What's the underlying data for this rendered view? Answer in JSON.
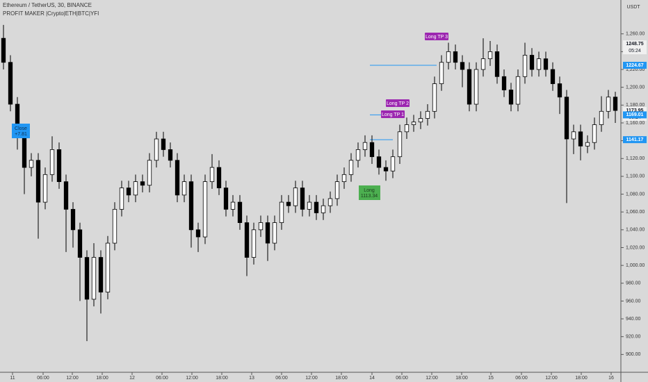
{
  "chart_data": {
    "type": "candlestick",
    "title": "Ethereum / TetherUS, 30, BINANCE",
    "subtitle": "PROFIT MAKER |Crypto|ETH|BTC|YFI",
    "y_unit": "USDT",
    "ylim": [
      880,
      1298
    ],
    "xlim": [
      -0.5,
      88.5
    ],
    "bull_color": "#ffffff",
    "bear_color": "#000000",
    "yticks": [
      {
        "value": 900,
        "label": "900.00"
      },
      {
        "value": 920,
        "label": "920.00"
      },
      {
        "value": 940,
        "label": "940.00"
      },
      {
        "value": 960,
        "label": "960.00"
      },
      {
        "value": 980,
        "label": "980.00"
      },
      {
        "value": 1000,
        "label": "1,000.00"
      },
      {
        "value": 1020,
        "label": "1,020.00"
      },
      {
        "value": 1040,
        "label": "1,040.00"
      },
      {
        "value": 1060,
        "label": "1,060.00"
      },
      {
        "value": 1080,
        "label": "1,080.00"
      },
      {
        "value": 1100,
        "label": "1,100.00"
      },
      {
        "value": 1120,
        "label": "1,120.00"
      },
      {
        "value": 1140,
        "label": "1,140.00"
      },
      {
        "value": 1160,
        "label": "1,160.00"
      },
      {
        "value": 1180,
        "label": "1,180.00"
      },
      {
        "value": 1200,
        "label": "1,200.00"
      },
      {
        "value": 1220,
        "label": "1,220.00"
      },
      {
        "value": 1240,
        "label": "1,240.00"
      },
      {
        "value": 1260,
        "label": "1,260.00"
      }
    ],
    "xticks": [
      {
        "value": 1.3,
        "label": "11"
      },
      {
        "value": 5.7,
        "label": "06:00"
      },
      {
        "value": 9.9,
        "label": "12:00"
      },
      {
        "value": 14.2,
        "label": "18:00"
      },
      {
        "value": 18.5,
        "label": "12"
      },
      {
        "value": 22.8,
        "label": "06:00"
      },
      {
        "value": 27.1,
        "label": "12:00"
      },
      {
        "value": 31.4,
        "label": "18:00"
      },
      {
        "value": 35.7,
        "label": "13"
      },
      {
        "value": 40,
        "label": "06:00"
      },
      {
        "value": 44.3,
        "label": "12:00"
      },
      {
        "value": 48.6,
        "label": "18:00"
      },
      {
        "value": 53,
        "label": "14"
      },
      {
        "value": 57.3,
        "label": "06:00"
      },
      {
        "value": 61.6,
        "label": "12:00"
      },
      {
        "value": 65.9,
        "label": "18:00"
      },
      {
        "value": 70.1,
        "label": "15"
      },
      {
        "value": 74.5,
        "label": "06:00"
      },
      {
        "value": 78.8,
        "label": "12:00"
      },
      {
        "value": 83.1,
        "label": "18:00"
      },
      {
        "value": 87.4,
        "label": "16"
      }
    ],
    "series": {
      "open": [
        1255,
        1228,
        1181,
        1150,
        1110,
        1118,
        1071,
        1102,
        1130,
        1094,
        1063,
        1040,
        1009,
        962,
        1009,
        970,
        1025,
        1063,
        1087,
        1079,
        1094,
        1090,
        1118,
        1142,
        1130,
        1118,
        1079,
        1094,
        1040,
        1032,
        1094,
        1110,
        1087,
        1063,
        1071,
        1048,
        1009,
        1040,
        1048,
        1025,
        1048,
        1071,
        1067,
        1087,
        1063,
        1071,
        1059,
        1067,
        1075,
        1094,
        1102,
        1118,
        1130,
        1138,
        1122,
        1110,
        1106,
        1122,
        1150,
        1158,
        1161,
        1165,
        1173,
        1204,
        1228,
        1240,
        1228,
        1220,
        1181,
        1220,
        1232,
        1240,
        1212,
        1197,
        1181,
        1212,
        1236,
        1220,
        1232,
        1220,
        1204,
        1189,
        1142,
        1150,
        1134,
        1138,
        1158,
        1173,
        1189
      ],
      "high": [
        1270,
        1236,
        1189,
        1158,
        1126,
        1126,
        1110,
        1145,
        1138,
        1102,
        1071,
        1048,
        1017,
        1025,
        1017,
        1033,
        1071,
        1095,
        1095,
        1102,
        1102,
        1126,
        1150,
        1150,
        1138,
        1126,
        1102,
        1102,
        1048,
        1102,
        1125,
        1118,
        1095,
        1079,
        1079,
        1056,
        1048,
        1056,
        1056,
        1056,
        1079,
        1079,
        1095,
        1095,
        1079,
        1079,
        1075,
        1083,
        1102,
        1110,
        1126,
        1138,
        1146,
        1146,
        1130,
        1118,
        1130,
        1158,
        1166,
        1169,
        1173,
        1181,
        1212,
        1236,
        1250,
        1248,
        1236,
        1228,
        1228,
        1255,
        1252,
        1248,
        1220,
        1205,
        1220,
        1250,
        1244,
        1240,
        1240,
        1228,
        1212,
        1197,
        1158,
        1158,
        1146,
        1166,
        1190,
        1197,
        1195
      ],
      "low": [
        1220,
        1173,
        1130,
        1080,
        1100,
        1030,
        1063,
        1094,
        1086,
        1015,
        1020,
        960,
        915,
        954,
        946,
        962,
        1017,
        1055,
        1071,
        1071,
        1082,
        1082,
        1110,
        1122,
        1110,
        1071,
        1071,
        1020,
        1015,
        1024,
        1086,
        1079,
        1055,
        1055,
        1040,
        988,
        1001,
        1032,
        1005,
        1017,
        1040,
        1059,
        1059,
        1055,
        1055,
        1051,
        1051,
        1059,
        1067,
        1086,
        1094,
        1110,
        1122,
        1114,
        1102,
        1095,
        1098,
        1114,
        1142,
        1150,
        1153,
        1157,
        1165,
        1196,
        1220,
        1220,
        1200,
        1173,
        1173,
        1212,
        1224,
        1204,
        1189,
        1173,
        1173,
        1204,
        1212,
        1212,
        1212,
        1196,
        1170,
        1070,
        1125,
        1118,
        1126,
        1130,
        1150,
        1165,
        1160
      ],
      "close": [
        1228,
        1181,
        1150,
        1110,
        1118,
        1071,
        1102,
        1130,
        1094,
        1063,
        1040,
        1009,
        962,
        1009,
        970,
        1025,
        1063,
        1087,
        1079,
        1094,
        1090,
        1118,
        1142,
        1130,
        1118,
        1079,
        1094,
        1040,
        1032,
        1094,
        1110,
        1087,
        1063,
        1071,
        1048,
        1009,
        1040,
        1048,
        1025,
        1048,
        1071,
        1067,
        1087,
        1063,
        1071,
        1059,
        1067,
        1075,
        1094,
        1102,
        1118,
        1130,
        1138,
        1122,
        1110,
        1106,
        1122,
        1150,
        1158,
        1161,
        1165,
        1173,
        1204,
        1228,
        1240,
        1228,
        1220,
        1181,
        1220,
        1232,
        1240,
        1212,
        1197,
        1181,
        1212,
        1236,
        1220,
        1232,
        1220,
        1204,
        1189,
        1142,
        1150,
        1134,
        1138,
        1158,
        1173,
        1189,
        1173.95
      ]
    },
    "levels": [
      1224.67,
      1169.01,
      1141.17
    ],
    "level_color": "#2196f3",
    "price_tags": [
      {
        "value": 1248.75,
        "color": "#f0f0f0",
        "text_color": "#131722"
      },
      {
        "value": 1224.67,
        "color": "#2196f3",
        "text_color": "#ffffff"
      },
      {
        "value": 1173.95,
        "color": "#f0f0f0",
        "text_color": "#131722"
      },
      {
        "value": 1169.01,
        "color": "#2196f3",
        "text_color": "#ffffff"
      },
      {
        "value": 1141.17,
        "color": "#2196f3",
        "text_color": "#ffffff"
      }
    ],
    "countdown": "05:24",
    "annotations": {
      "tp3": "Long TP 3",
      "tp2": "Long TP 2",
      "tp1": "Long TP 1",
      "long": "Long",
      "long_price": "1113.34",
      "close": "Close",
      "close_profit": "+7.81"
    }
  }
}
